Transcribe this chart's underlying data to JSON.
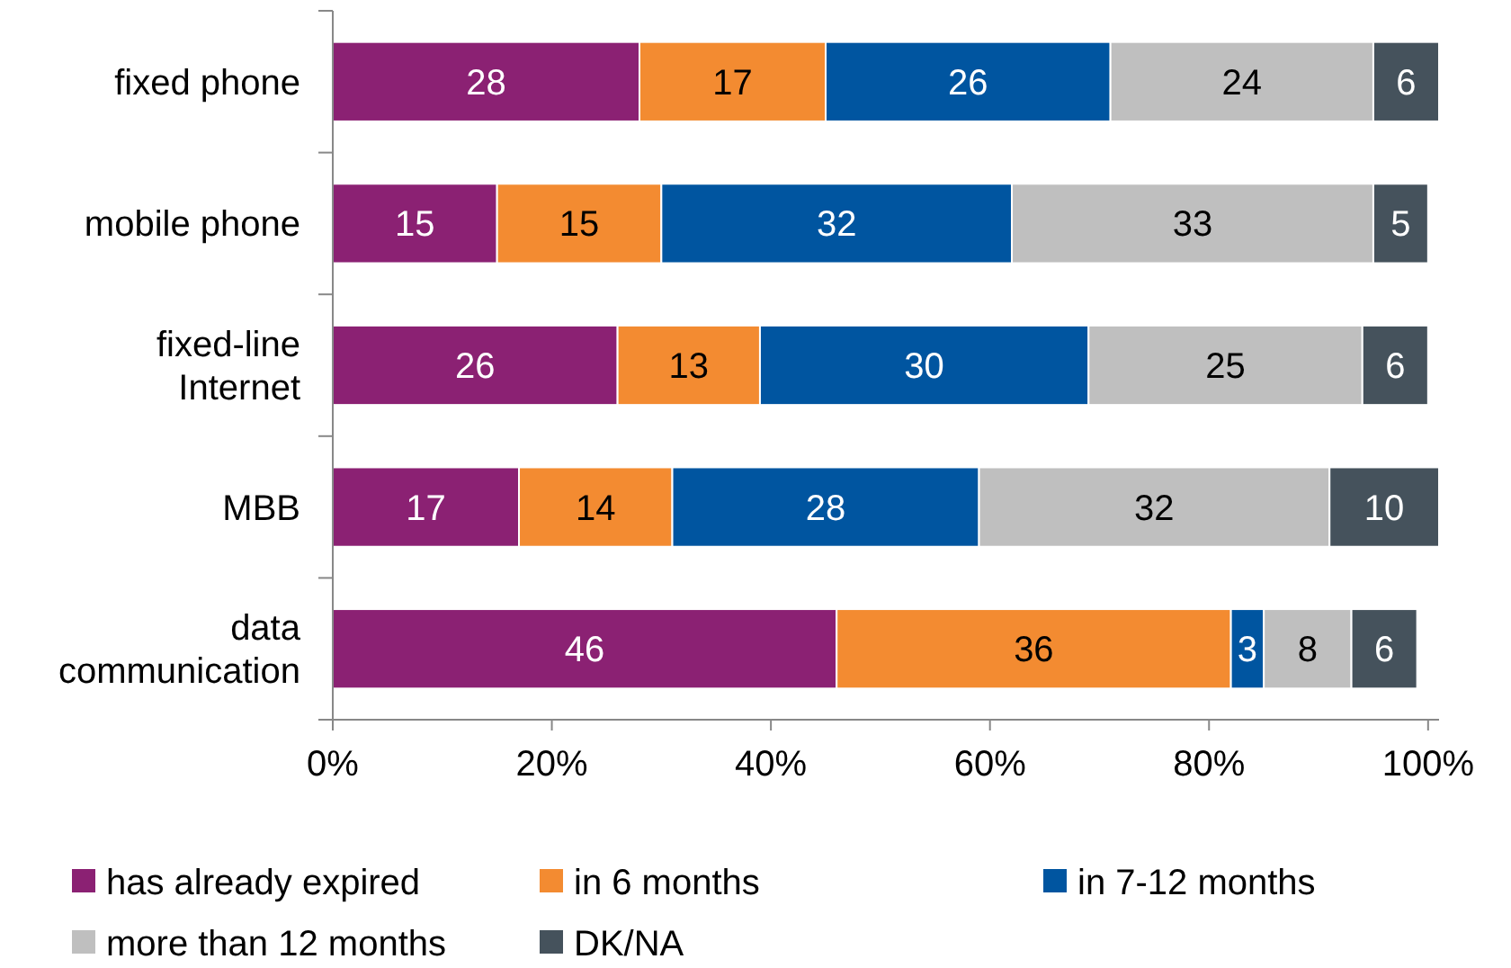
{
  "chart_data": {
    "type": "bar",
    "orientation": "horizontal",
    "stacked": true,
    "data_labels": true,
    "legend": "bottom",
    "grid": false,
    "categories": [
      "fixed phone",
      "mobile phone",
      "fixed-line Internet",
      "MBB",
      "data communication"
    ],
    "xlim": [
      0,
      101
    ],
    "xticks": [
      {
        "value": 0,
        "label": "0%"
      },
      {
        "value": 20,
        "label": "20%"
      },
      {
        "value": 40,
        "label": "40%"
      },
      {
        "value": 60,
        "label": "60%"
      },
      {
        "value": 80,
        "label": "80%"
      },
      {
        "value": 100,
        "label": "100%"
      }
    ],
    "series": [
      {
        "name": "has already expired",
        "color": "#8b2173",
        "values": [
          28,
          15,
          26,
          17,
          46
        ]
      },
      {
        "name": "in 6 months",
        "color": "#f38b31",
        "values": [
          17,
          15,
          13,
          14,
          36
        ]
      },
      {
        "name": "in 7-12 months",
        "color": "#0055a0",
        "values": [
          26,
          32,
          30,
          28,
          3
        ]
      },
      {
        "name": "more than 12 months",
        "color": "#bfbfbf",
        "values": [
          24,
          33,
          25,
          32,
          8
        ]
      },
      {
        "name": "DK/NA",
        "color": "#45525c",
        "values": [
          6,
          5,
          6,
          10,
          6
        ]
      }
    ]
  }
}
